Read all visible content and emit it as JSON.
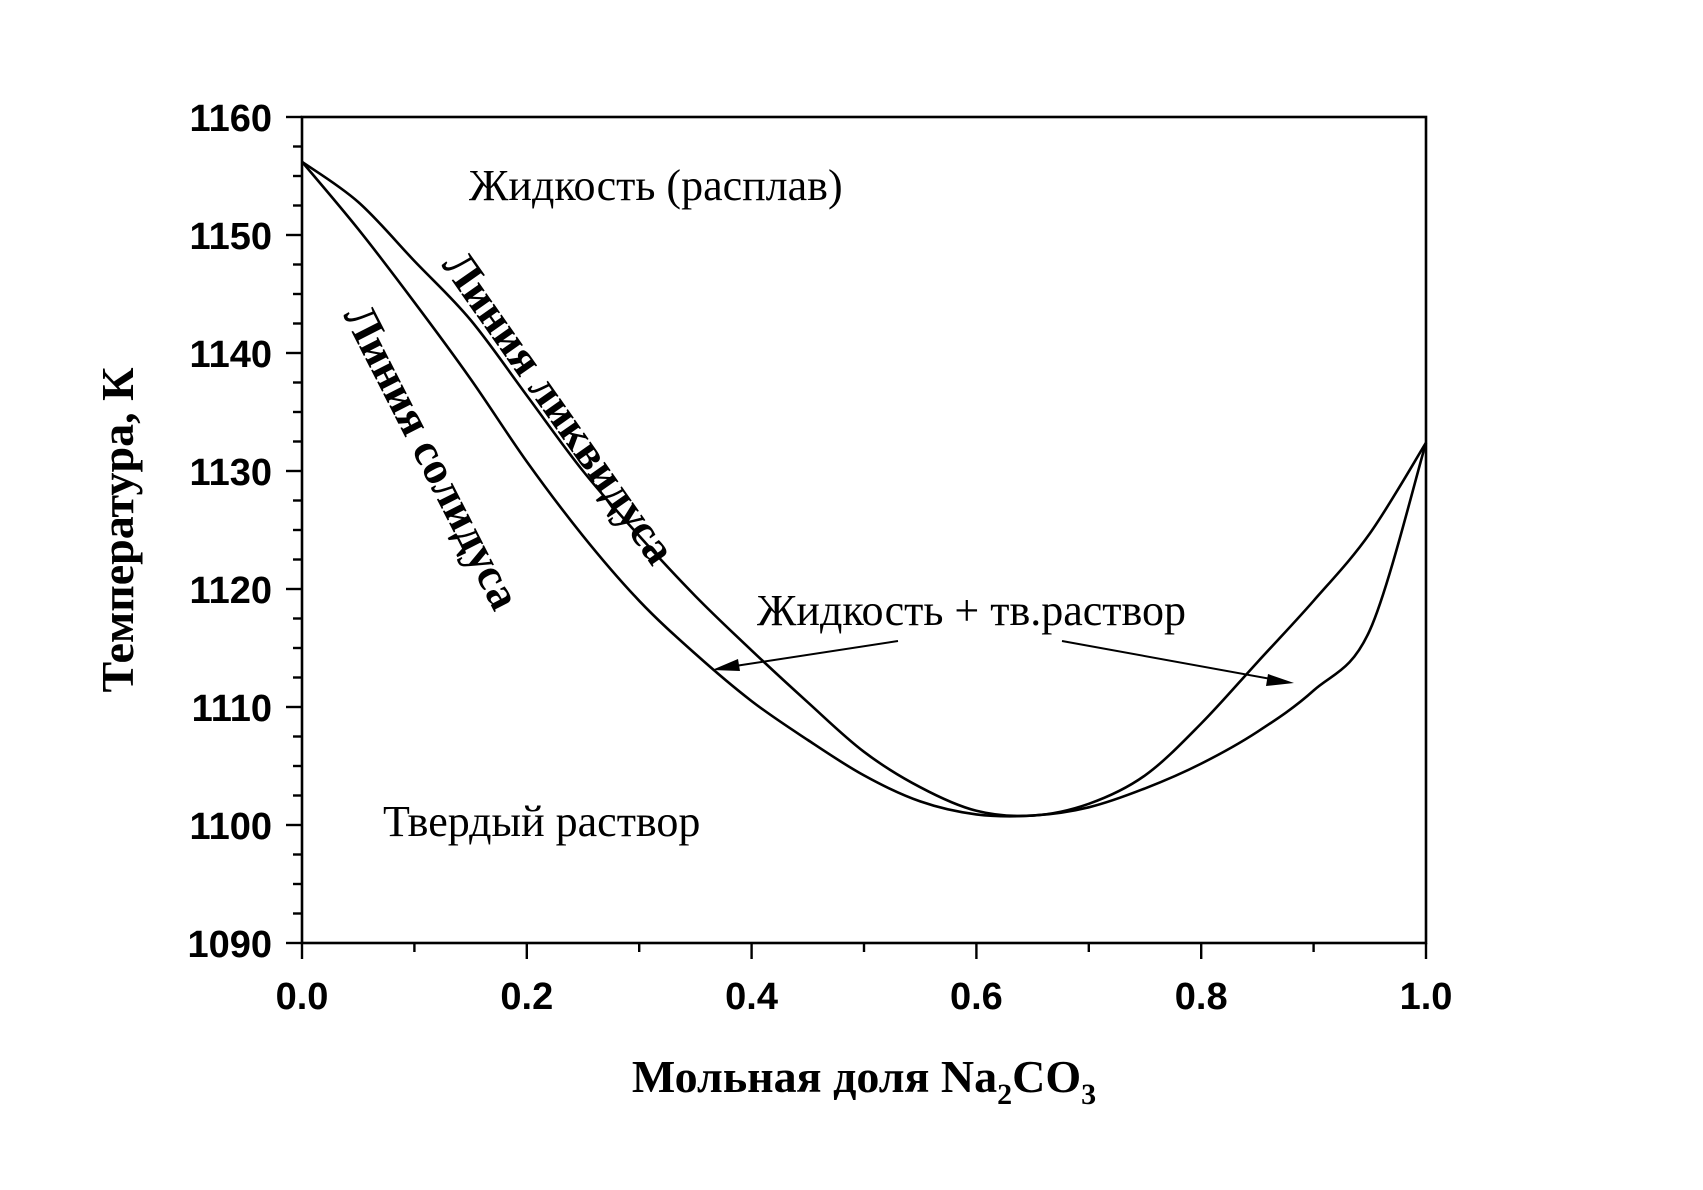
{
  "chart_data": {
    "type": "line",
    "title": "",
    "xlabel": "Мольная доля Na",
    "xlabel_sub1": "2",
    "xlabel_mid": "CO",
    "xlabel_sub2": "3",
    "ylabel": "Температура, К",
    "xlim": [
      0.0,
      1.0
    ],
    "ylim": [
      1090,
      1160
    ],
    "x_ticks": [
      0.0,
      0.2,
      0.4,
      0.6,
      0.8,
      1.0
    ],
    "x_tick_labels": [
      "0.0",
      "0.2",
      "0.4",
      "0.6",
      "0.8",
      "1.0"
    ],
    "y_ticks": [
      1090,
      1100,
      1110,
      1120,
      1130,
      1140,
      1150,
      1160
    ],
    "y_tick_labels": [
      "1090",
      "1100",
      "1110",
      "1120",
      "1130",
      "1140",
      "1150",
      "1160"
    ],
    "grid": false,
    "legend": "none",
    "series": [
      {
        "label": "Линия ликвидуса",
        "x": [
          0.0,
          0.05,
          0.1,
          0.15,
          0.2,
          0.25,
          0.3,
          0.35,
          0.4,
          0.45,
          0.5,
          0.55,
          0.6,
          0.65,
          0.7,
          0.75,
          0.8,
          0.85,
          0.9,
          0.95,
          1.0
        ],
        "y": [
          1156.2,
          1152.8,
          1147.8,
          1142.8,
          1136.4,
          1130.0,
          1124.5,
          1119.4,
          1114.8,
          1110.4,
          1106.2,
          1103.2,
          1101.2,
          1100.8,
          1101.8,
          1104.2,
          1108.6,
          1113.8,
          1119.0,
          1124.7,
          1132.4
        ]
      },
      {
        "label": "Линия солидуса",
        "x": [
          0.0,
          0.05,
          0.1,
          0.15,
          0.2,
          0.25,
          0.3,
          0.35,
          0.4,
          0.45,
          0.5,
          0.55,
          0.6,
          0.65,
          0.7,
          0.75,
          0.8,
          0.85,
          0.9,
          0.95,
          1.0
        ],
        "y": [
          1156.2,
          1150.5,
          1144.3,
          1137.8,
          1130.8,
          1124.5,
          1119.0,
          1114.5,
          1110.5,
          1107.2,
          1104.2,
          1102.0,
          1100.9,
          1100.8,
          1101.5,
          1103.1,
          1105.2,
          1107.9,
          1111.4,
          1116.5,
          1132.4
        ]
      }
    ],
    "annotations": {
      "liquid": "Жидкость (расплав)",
      "two_phase": "Жидкость + тв.раствор",
      "solid": "Твердый раствор",
      "liquidus_label": "Линия ликвидуса",
      "solidus_label": "Линия солидуса"
    }
  }
}
